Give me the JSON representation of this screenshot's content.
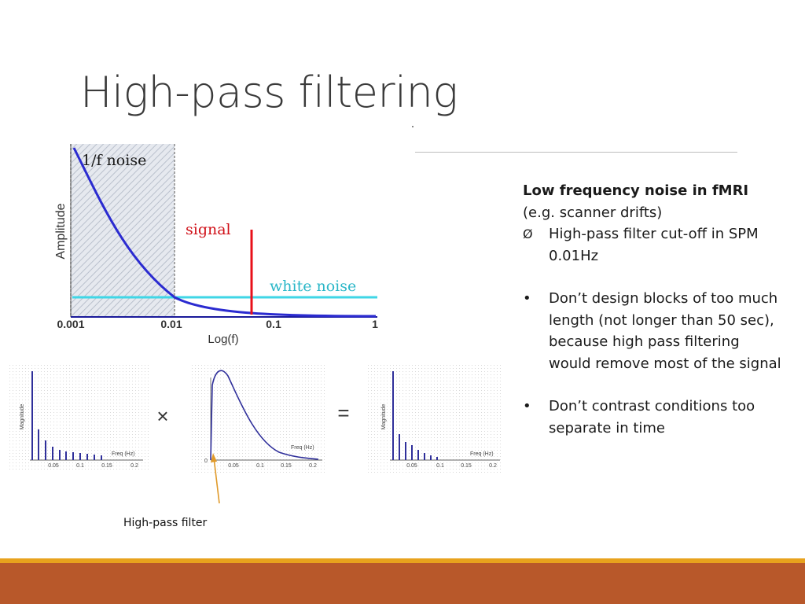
{
  "slide": {
    "title": "High-pass filtering"
  },
  "diagram": {
    "labels": {
      "noise_1f": "1/f noise",
      "signal": "signal",
      "white_noise": "white noise",
      "ylabel": "Amplitude",
      "xlabel": "Log(f)"
    },
    "x_ticks": [
      "0.001",
      "0.01",
      "0.1",
      "1"
    ],
    "spectra": {
      "ylabel": "Magnitude",
      "xlabel": "Freq (Hz)",
      "x_ticks": [
        "0.05",
        "0.1",
        "0.15",
        "0.2"
      ],
      "zero_label": "0"
    },
    "operators": {
      "multiply": "×",
      "equals": "="
    },
    "high_pass_filter_label": "High-pass filter",
    "colors": {
      "curve": "#2b2bd0",
      "signal": "#e8101a",
      "white_noise": "#3fd6e6",
      "arrow": "#e09a2a",
      "shaded": "#c8cfdc"
    }
  },
  "notes": {
    "heading_bold": "Low frequency noise in fMRI",
    "heading_rest": " (e.g. scanner drifts)",
    "sub_arrow": "Ø",
    "sub_text": "High-pass filter cut-off in SPM 0.01Hz",
    "bullets": [
      "Don’t design blocks of too much length (not longer than 50 sec), because high pass filtering would remove most of the signal",
      "Don’t contrast conditions too separate in time"
    ],
    "bullet_symbol": "•"
  },
  "theme": {
    "accent_bar": "#e8a21d",
    "footer_bar": "#b8582a"
  }
}
